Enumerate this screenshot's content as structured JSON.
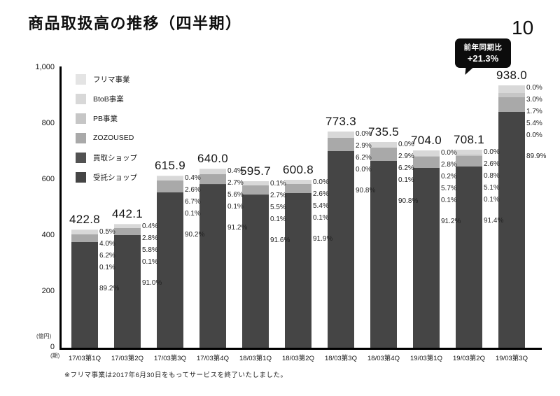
{
  "slide": {
    "title": "商品取扱高の推移（四半期）",
    "page_number": "10",
    "callout": {
      "line1": "前年同期比",
      "line2": "+21.3%"
    },
    "footnote": "※フリマ事業は2017年6月30日をもってサービスを終了いたしました。"
  },
  "chart_data": {
    "type": "bar",
    "stacked": true,
    "title": "商品取扱高の推移（四半期）",
    "legend_position": "top-left-inside",
    "grid": false,
    "y_axis": {
      "unit": "(億円)",
      "min": 0,
      "max": 1000,
      "ticks": [
        {
          "label": "1,000",
          "value": 1000
        },
        {
          "label": "800",
          "value": 800
        },
        {
          "label": "600",
          "value": 600
        },
        {
          "label": "400",
          "value": 400
        },
        {
          "label": "200",
          "value": 200
        },
        {
          "label": "0",
          "value": 0
        }
      ]
    },
    "x_axis": {
      "unit": "(期)"
    },
    "categories": [
      "17/03第1Q",
      "17/03第2Q",
      "17/03第3Q",
      "17/03第4Q",
      "18/03第1Q",
      "18/03第2Q",
      "18/03第3Q",
      "18/03第4Q",
      "19/03第1Q",
      "19/03第2Q",
      "19/03第3Q"
    ],
    "totals": [
      422.8,
      442.1,
      615.9,
      640.0,
      595.7,
      600.8,
      773.3,
      735.5,
      704.0,
      708.1,
      938.0
    ],
    "series": [
      {
        "key": "furima-jigyo",
        "name": "フリマ事業",
        "color": "#e4e4e4",
        "pct": [
          0.5,
          0.4,
          0.4,
          0.4,
          0.1,
          0.0,
          0.0,
          0.0,
          0.0,
          0.0,
          0.0
        ]
      },
      {
        "key": "btob-jigyo",
        "name": "BtoB事業",
        "color": "#d8d8d8",
        "pct": [
          4.0,
          2.8,
          2.6,
          2.7,
          2.7,
          2.6,
          2.9,
          2.9,
          2.8,
          2.6,
          3.0
        ]
      },
      {
        "key": "pb-jigyo",
        "name": "PB事業",
        "color": "#c6c6c6",
        "pct": [
          null,
          null,
          null,
          null,
          null,
          null,
          null,
          null,
          0.2,
          0.8,
          1.7
        ]
      },
      {
        "key": "zozoused",
        "name": "ZOZOUSED",
        "color": "#a9a9a9",
        "pct": [
          6.2,
          5.8,
          6.7,
          5.6,
          5.5,
          5.4,
          6.2,
          6.2,
          5.7,
          5.1,
          5.4
        ]
      },
      {
        "key": "kaitori-shop",
        "name": "買取ショップ",
        "color": "#525252",
        "pct": [
          0.1,
          0.1,
          0.1,
          0.1,
          0.1,
          0.1,
          0.0,
          0.1,
          0.1,
          0.1,
          0.0
        ]
      },
      {
        "key": "jutaku-shop",
        "name": "受託ショップ",
        "color": "#454545",
        "pct": [
          89.2,
          91.0,
          90.2,
          91.2,
          91.6,
          91.9,
          90.8,
          90.8,
          91.2,
          91.4,
          89.9
        ]
      }
    ]
  }
}
